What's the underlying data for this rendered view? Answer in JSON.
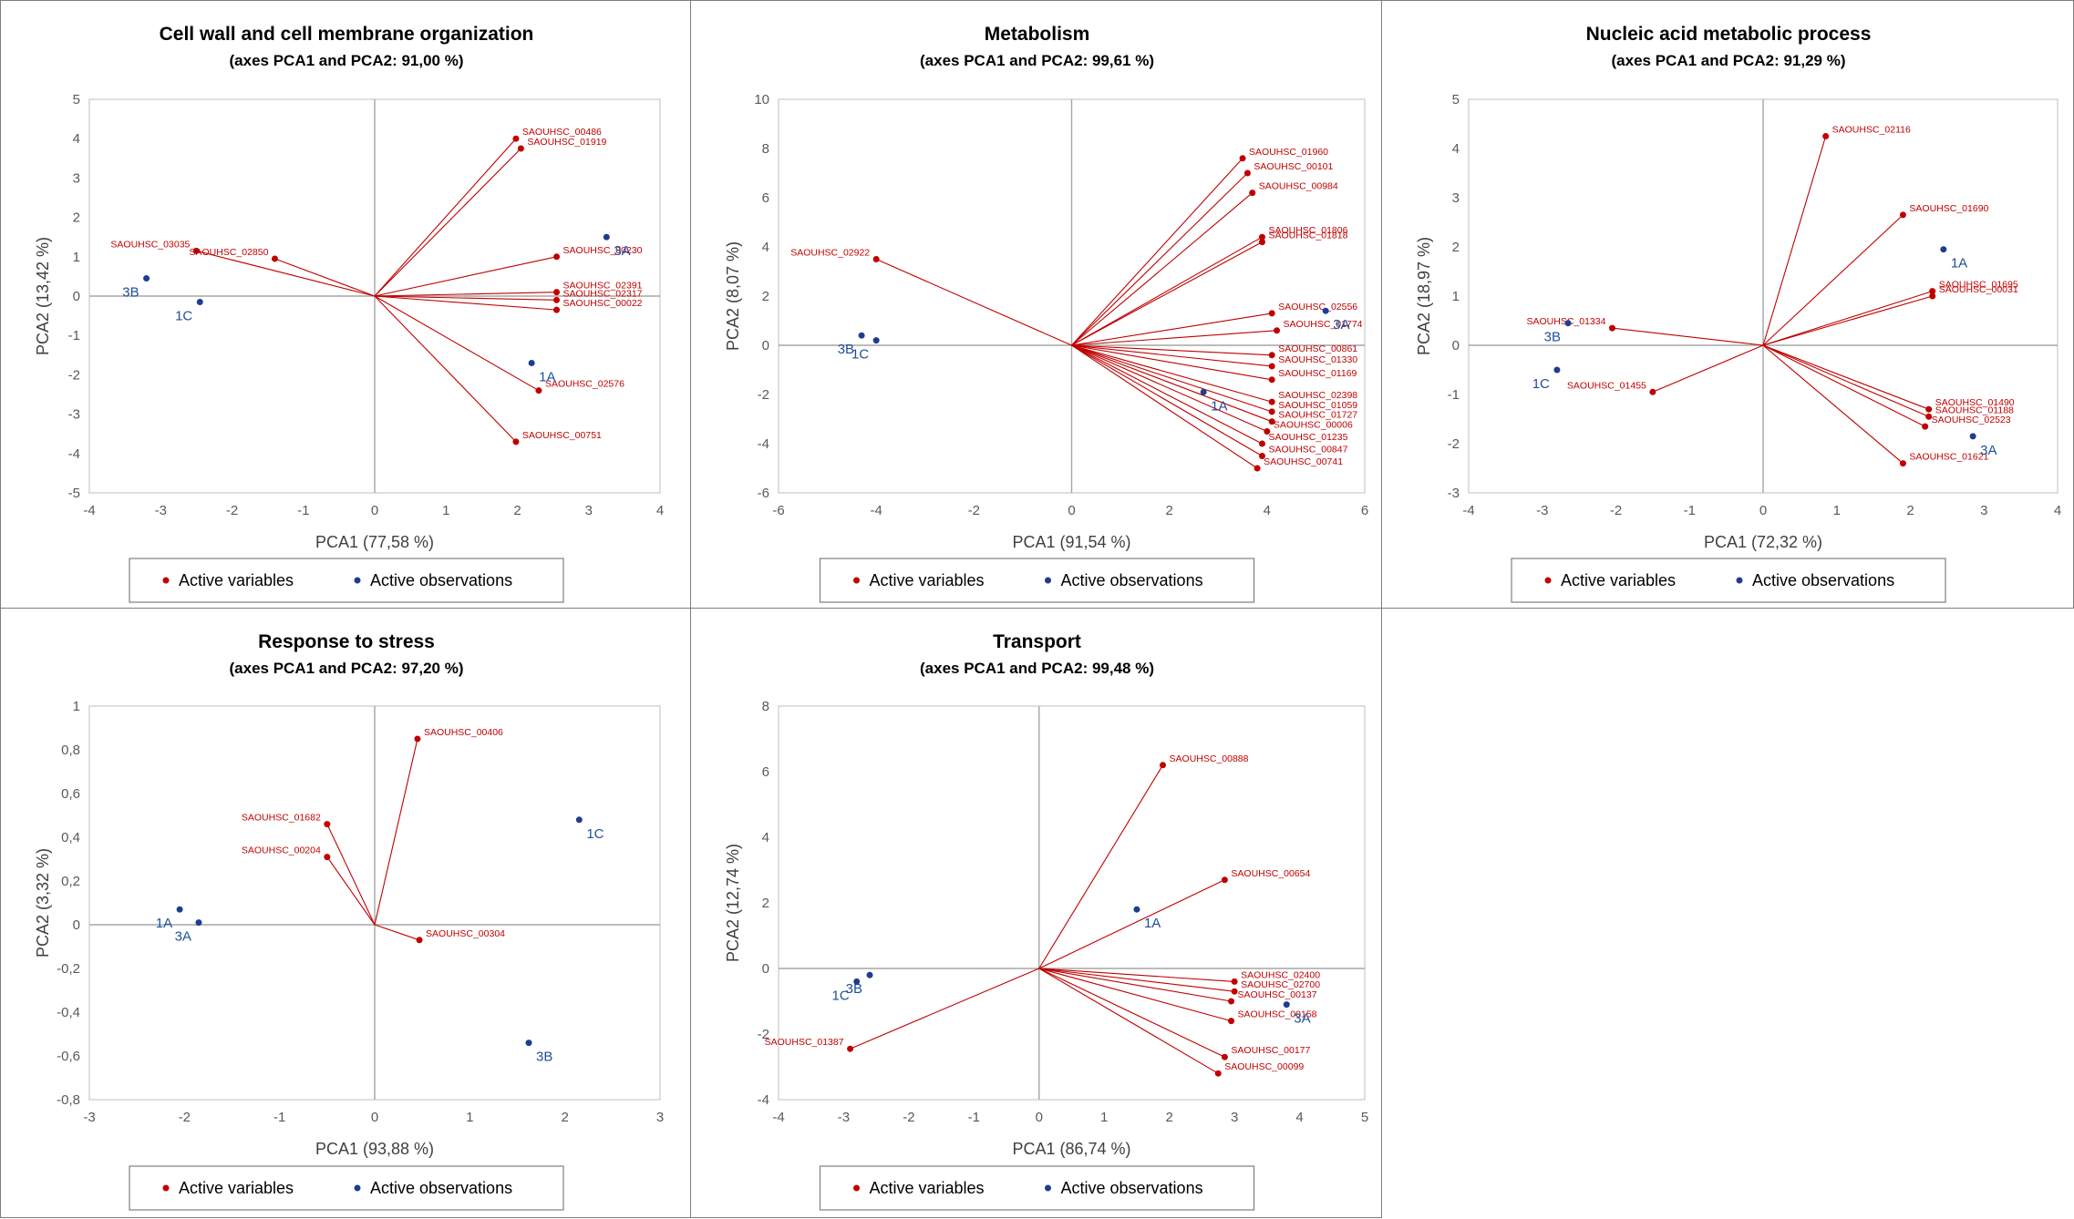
{
  "colors": {
    "variables": "#c00000",
    "observations": "#1f3d8f",
    "axis": "#a6a6a6",
    "border": "#7f7f7f"
  },
  "legend": {
    "variables_label": "Active variables",
    "observations_label": "Active observations"
  },
  "chart_data": [
    {
      "type": "scatter",
      "title": "Cell wall and cell membrane organization",
      "subtitle": "(axes PCA1 and PCA2: 91,00 %)",
      "xlabel": "PCA1 (77,58 %)",
      "ylabel": "PCA2 (13,42 %)",
      "xlim": [
        -4,
        4
      ],
      "ylim": [
        -5,
        5
      ],
      "xticks": [
        "-4",
        "-3",
        "-2",
        "-1",
        "0",
        "1",
        "2",
        "3",
        "4"
      ],
      "yticks": [
        "-5",
        "-4",
        "-3",
        "-2",
        "-1",
        "0",
        "1",
        "2",
        "3",
        "4",
        "5"
      ],
      "variables": [
        {
          "name": "SAOUHSC_00486",
          "x": 1.98,
          "y": 4.0
        },
        {
          "name": "SAOUHSC_01919",
          "x": 2.05,
          "y": 3.75
        },
        {
          "name": "SAOUHSC_03035",
          "x": -2.5,
          "y": 1.15
        },
        {
          "name": "SAOUHSC_02850",
          "x": -1.4,
          "y": 0.95
        },
        {
          "name": "SAOUHSC_00230",
          "x": 2.55,
          "y": 1.0
        },
        {
          "name": "SAOUHSC_02391",
          "x": 2.55,
          "y": 0.1
        },
        {
          "name": "SAOUHSC_02317",
          "x": 2.55,
          "y": -0.1
        },
        {
          "name": "SAOUHSC_00022",
          "x": 2.55,
          "y": -0.35
        },
        {
          "name": "SAOUHSC_02576",
          "x": 2.3,
          "y": -2.4
        },
        {
          "name": "SAOUHSC_00751",
          "x": 1.98,
          "y": -3.7
        }
      ],
      "observations": [
        {
          "name": "3B",
          "x": -3.2,
          "y": 0.45
        },
        {
          "name": "1C",
          "x": -2.45,
          "y": -0.15
        },
        {
          "name": "3A",
          "x": 3.25,
          "y": 1.5
        },
        {
          "name": "1A",
          "x": 2.2,
          "y": -1.7
        }
      ]
    },
    {
      "type": "scatter",
      "title": "Metabolism",
      "subtitle": "(axes PCA1 and PCA2: 99,61 %)",
      "xlabel": "PCA1 (91,54 %)",
      "ylabel": "PCA2 (8,07 %)",
      "xlim": [
        -6,
        6
      ],
      "ylim": [
        -6,
        10
      ],
      "xticks": [
        "-6",
        "-4",
        "-2",
        "0",
        "2",
        "4",
        "6"
      ],
      "yticks": [
        "-6",
        "-4",
        "-2",
        "0",
        "2",
        "4",
        "6",
        "8",
        "10"
      ],
      "variables": [
        {
          "name": "SAOUHSC_01960",
          "x": 3.5,
          "y": 7.6
        },
        {
          "name": "SAOUHSC_00101",
          "x": 3.6,
          "y": 7.0
        },
        {
          "name": "SAOUHSC_00984",
          "x": 3.7,
          "y": 6.2
        },
        {
          "name": "SAOUHSC_01806",
          "x": 3.9,
          "y": 4.4
        },
        {
          "name": "SAOUHSC_01818",
          "x": 3.9,
          "y": 4.2
        },
        {
          "name": "SAOUHSC_02922",
          "x": -4.0,
          "y": 3.5
        },
        {
          "name": "SAOUHSC_02556",
          "x": 4.1,
          "y": 1.3
        },
        {
          "name": "SAOUHSC_01774",
          "x": 4.2,
          "y": 0.6
        },
        {
          "name": "SAOUHSC_00861",
          "x": 4.1,
          "y": -0.4
        },
        {
          "name": "SAOUHSC_01330",
          "x": 4.1,
          "y": -0.85
        },
        {
          "name": "SAOUHSC_01169",
          "x": 4.1,
          "y": -1.4
        },
        {
          "name": "SAOUHSC_02398",
          "x": 4.1,
          "y": -2.3
        },
        {
          "name": "SAOUHSC_01059",
          "x": 4.1,
          "y": -2.7
        },
        {
          "name": "SAOUHSC_01727",
          "x": 4.1,
          "y": -3.1
        },
        {
          "name": "SAOUHSC_00006",
          "x": 4.0,
          "y": -3.5
        },
        {
          "name": "SAOUHSC_01235",
          "x": 3.9,
          "y": -4.0
        },
        {
          "name": "SAOUHSC_00847",
          "x": 3.9,
          "y": -4.5
        },
        {
          "name": "SAOUHSC_00741",
          "x": 3.8,
          "y": -5.0
        }
      ],
      "observations": [
        {
          "name": "3B",
          "x": -4.3,
          "y": 0.4
        },
        {
          "name": "1C",
          "x": -4.0,
          "y": 0.2
        },
        {
          "name": "3A",
          "x": 5.2,
          "y": 1.4
        },
        {
          "name": "1A",
          "x": 2.7,
          "y": -1.9
        }
      ]
    },
    {
      "type": "scatter",
      "title": "Nucleic acid metabolic process",
      "subtitle": "(axes PCA1 and PCA2: 91,29 %)",
      "xlabel": "PCA1 (72,32 %)",
      "ylabel": "PCA2 (18,97 %)",
      "xlim": [
        -4,
        4
      ],
      "ylim": [
        -3,
        5
      ],
      "xticks": [
        "-4",
        "-3",
        "-2",
        "-1",
        "0",
        "1",
        "2",
        "3",
        "4"
      ],
      "yticks": [
        "-3",
        "-2",
        "-1",
        "0",
        "1",
        "2",
        "3",
        "4",
        "5"
      ],
      "variables": [
        {
          "name": "SAOUHSC_02116",
          "x": 0.85,
          "y": 4.25
        },
        {
          "name": "SAOUHSC_01690",
          "x": 1.9,
          "y": 2.65
        },
        {
          "name": "SAOUHSC_01695",
          "x": 2.3,
          "y": 1.1
        },
        {
          "name": "SAOUHSC_00031",
          "x": 2.3,
          "y": 1.0
        },
        {
          "name": "SAOUHSC_01334",
          "x": -2.05,
          "y": 0.35
        },
        {
          "name": "SAOUHSC_01455",
          "x": -1.5,
          "y": -0.95
        },
        {
          "name": "SAOUHSC_01490",
          "x": 2.25,
          "y": -1.3
        },
        {
          "name": "SAOUHSC_01188",
          "x": 2.25,
          "y": -1.45
        },
        {
          "name": "SAOUHSC_02523",
          "x": 2.2,
          "y": -1.65
        },
        {
          "name": "SAOUHSC_01621",
          "x": 1.9,
          "y": -2.4
        }
      ],
      "observations": [
        {
          "name": "1A",
          "x": 2.45,
          "y": 1.95
        },
        {
          "name": "3B",
          "x": -2.65,
          "y": 0.45
        },
        {
          "name": "1C",
          "x": -2.8,
          "y": -0.5
        },
        {
          "name": "3A",
          "x": 2.85,
          "y": -1.85
        }
      ]
    },
    {
      "type": "scatter",
      "title": "Response to stress",
      "subtitle": "(axes PCA1 and PCA2: 97,20 %)",
      "xlabel": "PCA1 (93,88 %)",
      "ylabel": "PCA2 (3,32 %)",
      "xlim": [
        -3,
        3
      ],
      "ylim": [
        -0.8,
        1
      ],
      "xticks": [
        "-3",
        "-2",
        "-1",
        "0",
        "1",
        "2",
        "3"
      ],
      "yticks": [
        "-0,8",
        "-0,6",
        "-0,4",
        "-0,2",
        "0",
        "0,2",
        "0,4",
        "0,6",
        "0,8",
        "1"
      ],
      "variables": [
        {
          "name": "SAOUHSC_00406",
          "x": 0.45,
          "y": 0.85
        },
        {
          "name": "SAOUHSC_01682",
          "x": -0.5,
          "y": 0.46
        },
        {
          "name": "SAOUHSC_00204",
          "x": -0.5,
          "y": 0.31
        },
        {
          "name": "SAOUHSC_00304",
          "x": 0.47,
          "y": -0.07
        }
      ],
      "observations": [
        {
          "name": "1C",
          "x": 2.15,
          "y": 0.48
        },
        {
          "name": "1A",
          "x": -2.05,
          "y": 0.07
        },
        {
          "name": "3A",
          "x": -1.85,
          "y": 0.01
        },
        {
          "name": "3B",
          "x": 1.62,
          "y": -0.54
        }
      ]
    },
    {
      "type": "scatter",
      "title": "Transport",
      "subtitle": "(axes PCA1 and PCA2: 99,48 %)",
      "xlabel": "PCA1 (86,74 %)",
      "ylabel": "PCA2 (12,74 %)",
      "xlim": [
        -4,
        5
      ],
      "ylim": [
        -4,
        8
      ],
      "xticks": [
        "-4",
        "-3",
        "-2",
        "-1",
        "0",
        "1",
        "2",
        "3",
        "4",
        "5"
      ],
      "yticks": [
        "-4",
        "-2",
        "0",
        "2",
        "4",
        "6",
        "8"
      ],
      "variables": [
        {
          "name": "SAOUHSC_00888",
          "x": 1.9,
          "y": 6.2
        },
        {
          "name": "SAOUHSC_00654",
          "x": 2.85,
          "y": 2.7
        },
        {
          "name": "SAOUHSC_02400",
          "x": 3.0,
          "y": -0.4
        },
        {
          "name": "SAOUHSC_02700",
          "x": 3.0,
          "y": -0.7
        },
        {
          "name": "SAOUHSC_00137",
          "x": 2.95,
          "y": -1.0
        },
        {
          "name": "SAOUHSC_00158",
          "x": 2.95,
          "y": -1.6
        },
        {
          "name": "SAOUHSC_00177",
          "x": 2.85,
          "y": -2.7
        },
        {
          "name": "SAOUHSC_00099",
          "x": 2.75,
          "y": -3.2
        },
        {
          "name": "SAOUHSC_01387",
          "x": -2.9,
          "y": -2.45
        }
      ],
      "observations": [
        {
          "name": "1A",
          "x": 1.5,
          "y": 1.8
        },
        {
          "name": "3B",
          "x": -2.6,
          "y": -0.2
        },
        {
          "name": "1C",
          "x": -2.8,
          "y": -0.4
        },
        {
          "name": "3A",
          "x": 3.8,
          "y": -1.1
        }
      ]
    }
  ]
}
